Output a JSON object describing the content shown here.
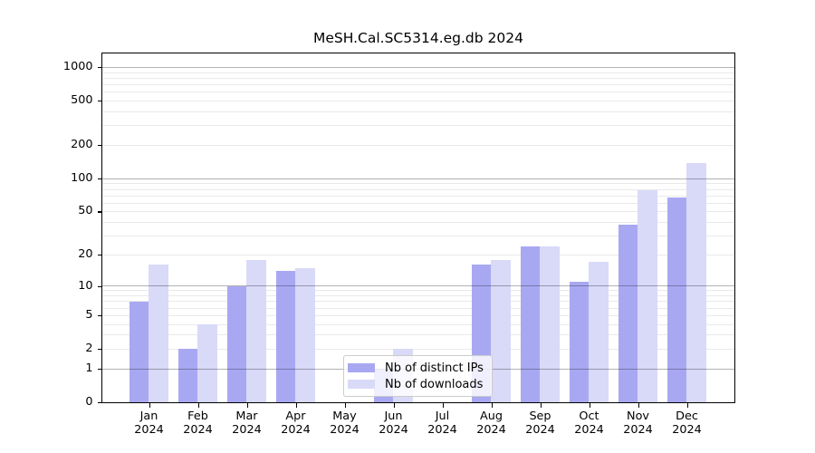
{
  "title": "MeSH.Cal.SC5314.eg.db 2024",
  "chart_data": {
    "type": "bar",
    "categories": [
      "Jan",
      "Feb",
      "Mar",
      "Apr",
      "May",
      "Jun",
      "Jul",
      "Aug",
      "Sep",
      "Oct",
      "Nov",
      "Dec"
    ],
    "year_label": "2024",
    "series": [
      {
        "name": "Nb of distinct IPs",
        "color": "#a8a8f2",
        "values": [
          7,
          2,
          10,
          14,
          0,
          1,
          0,
          16,
          24,
          11,
          38,
          68
        ]
      },
      {
        "name": "Nb of downloads",
        "color": "#d9d9f8",
        "values": [
          16,
          4,
          18,
          15,
          0,
          2,
          0,
          18,
          24,
          17,
          78,
          138
        ]
      }
    ],
    "yscale": "log1p",
    "yticks": [
      0,
      1,
      2,
      5,
      10,
      20,
      50,
      100,
      200,
      500,
      1000
    ],
    "ylim": [
      0,
      1310
    ],
    "grid": true,
    "legend_position": "inside-bottom-center"
  },
  "legend": {
    "items": [
      {
        "label": "Nb of distinct IPs",
        "color": "#a8a8f2"
      },
      {
        "label": "Nb of downloads",
        "color": "#d9d9f8"
      }
    ]
  },
  "colors": {
    "background": "#ffffff",
    "bar_distinct_ips": "#a8a8f2",
    "bar_downloads": "#d9d9f8",
    "grid_major": "#b3b3b3",
    "grid_minor": "#e9e9e9",
    "spine": "#000000",
    "text": "#000000"
  }
}
